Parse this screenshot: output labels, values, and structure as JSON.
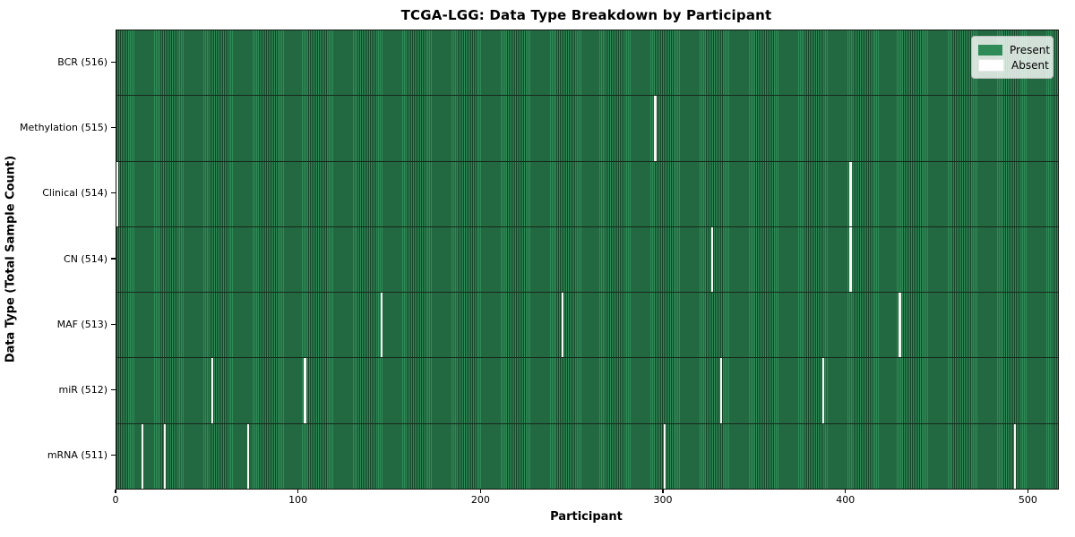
{
  "title": "TCGA-LGG: Data Type Breakdown by Participant",
  "xlabel": "Participant",
  "ylabel": "Data Type (Total Sample Count)",
  "legend": {
    "present": "Present",
    "absent": "Absent"
  },
  "chart_data": {
    "type": "heatmap",
    "title": "TCGA-LGG: Data Type Breakdown by Participant",
    "xlabel": "Participant",
    "ylabel": "Data Type (Total Sample Count)",
    "x_range": [
      0,
      516
    ],
    "n_participants": 516,
    "x_ticks": [
      0,
      100,
      200,
      300,
      400,
      500
    ],
    "legend_entries": [
      "Present",
      "Absent"
    ],
    "legend_position": "upper right",
    "grid": false,
    "rows": [
      {
        "label": "BCR (516)",
        "data_type": "BCR",
        "present_count": 516,
        "absent_participants": []
      },
      {
        "label": "Methylation (515)",
        "data_type": "Methylation",
        "present_count": 515,
        "absent_participants": [
          295
        ]
      },
      {
        "label": "Clinical (514)",
        "data_type": "Clinical",
        "present_count": 514,
        "absent_participants": [
          0,
          402
        ]
      },
      {
        "label": "CN (514)",
        "data_type": "CN",
        "present_count": 514,
        "absent_participants": [
          326,
          402
        ]
      },
      {
        "label": "MAF (513)",
        "data_type": "MAF",
        "present_count": 513,
        "absent_participants": [
          145,
          244,
          429
        ]
      },
      {
        "label": "miR (512)",
        "data_type": "miR",
        "present_count": 512,
        "absent_participants": [
          52,
          103,
          331,
          387
        ]
      },
      {
        "label": "mRNA (511)",
        "data_type": "mRNA",
        "present_count": 511,
        "absent_participants": [
          14,
          26,
          72,
          300,
          492
        ]
      }
    ],
    "colors": {
      "present": "#2e8b57",
      "cell_edge": "#174429",
      "absent": "#ffffff",
      "row_separator": "#15291b",
      "plot_border": "#101510"
    }
  }
}
